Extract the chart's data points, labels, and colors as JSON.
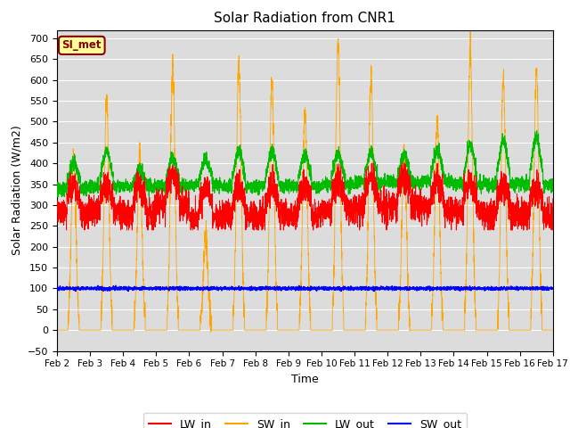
{
  "title": "Solar Radiation from CNR1",
  "xlabel": "Time",
  "ylabel": "Solar Radiation (W/m2)",
  "ylim": [
    -50,
    720
  ],
  "yticks": [
    -50,
    0,
    50,
    100,
    150,
    200,
    250,
    300,
    350,
    400,
    450,
    500,
    550,
    600,
    650,
    700
  ],
  "date_labels": [
    "Feb 2",
    "Feb 3",
    "Feb 4",
    "Feb 5",
    "Feb 6",
    "Feb 7",
    "Feb 8",
    "Feb 9",
    "Feb 10",
    "Feb 11",
    "Feb 12",
    "Feb 13",
    "Feb 14",
    "Feb 15",
    "Feb 16",
    "Feb 17"
  ],
  "colors": {
    "LW_in": "#FF0000",
    "SW_in": "#FFA500",
    "LW_out": "#00BB00",
    "SW_out": "#0000FF"
  },
  "plot_bg_color": "#DCDCDC",
  "station_label": "SI_met",
  "station_label_bg": "#FFFF99",
  "station_label_border": "#8B0000",
  "legend_entries": [
    "LW_in",
    "SW_in",
    "LW_out",
    "SW_out"
  ],
  "SW_in_peaks": [
    420,
    560,
    420,
    630,
    215,
    640,
    590,
    530,
    690,
    610,
    430,
    505,
    670,
    610,
    620
  ],
  "LW_in_base": 310,
  "LW_out_base": 355,
  "SW_out_base": 100
}
